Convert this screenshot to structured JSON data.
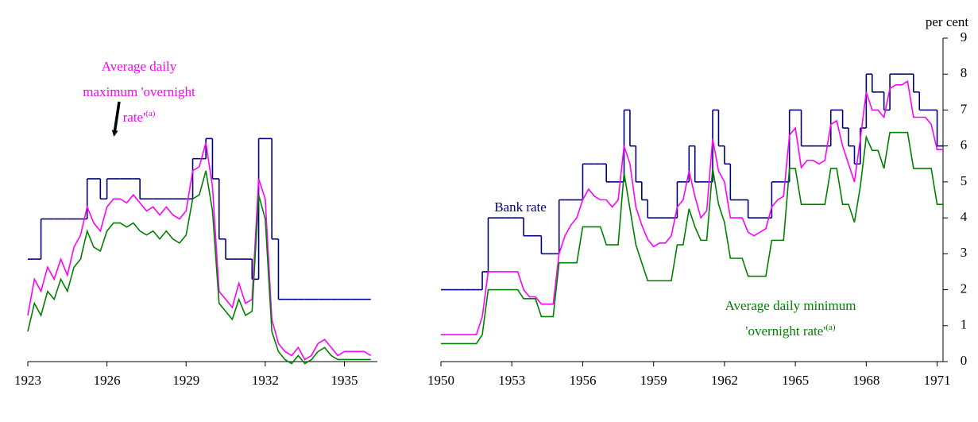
{
  "chart_data": [
    {
      "type": "line",
      "x": [
        1923,
        1923.25,
        1923.5,
        1923.75,
        1924,
        1924.25,
        1924.5,
        1924.75,
        1925,
        1925.25,
        1925.5,
        1925.75,
        1926,
        1926.25,
        1926.5,
        1926.75,
        1927,
        1927.25,
        1927.5,
        1927.75,
        1928,
        1928.25,
        1928.5,
        1928.75,
        1929,
        1929.25,
        1929.5,
        1929.75,
        1930,
        1930.25,
        1930.5,
        1930.75,
        1931,
        1931.25,
        1931.5,
        1931.75,
        1932,
        1932.25,
        1932.5,
        1932.75,
        1933,
        1933.25,
        1933.5,
        1933.75,
        1934,
        1934.25,
        1934.5,
        1934.75,
        1935,
        1935.25,
        1935.5,
        1935.75,
        1936
      ],
      "xlim": [
        1923,
        1936.25
      ],
      "xticks": [
        1923,
        1926,
        1929,
        1932,
        1935
      ],
      "ylim": [
        0.45,
        8.5
      ],
      "series": [
        {
          "color": "#000080",
          "step": true,
          "values": [
            3,
            3,
            4,
            4,
            4,
            4,
            4,
            4,
            4,
            5,
            5,
            4.5,
            5,
            5,
            5,
            5,
            5,
            4.5,
            4.5,
            4.5,
            4.5,
            4.5,
            4.5,
            4.5,
            4.5,
            5.5,
            5.5,
            6,
            5,
            3.5,
            3,
            3,
            3,
            3,
            2.5,
            6,
            6,
            3.5,
            2,
            2,
            2,
            2,
            2,
            2,
            2,
            2,
            2,
            2,
            2,
            2,
            2,
            2,
            2
          ]
        },
        {
          "color": "#ff00ff",
          "step": false,
          "values": [
            1.6,
            2.5,
            2.2,
            2.8,
            2.5,
            3.0,
            2.6,
            3.3,
            3.6,
            4.3,
            3.9,
            3.7,
            4.3,
            4.5,
            4.5,
            4.4,
            4.6,
            4.4,
            4.2,
            4.3,
            4.1,
            4.3,
            4.1,
            4.0,
            4.2,
            5.2,
            5.3,
            5.9,
            4.8,
            2.2,
            2.0,
            1.8,
            2.4,
            1.9,
            2.0,
            5.0,
            4.5,
            1.5,
            0.9,
            0.7,
            0.6,
            0.8,
            0.5,
            0.6,
            0.9,
            1.0,
            0.8,
            0.6,
            0.7,
            0.7,
            0.7,
            0.7,
            0.6
          ]
        },
        {
          "color": "#008000",
          "step": false,
          "values": [
            1.2,
            1.9,
            1.6,
            2.2,
            2.0,
            2.5,
            2.2,
            2.8,
            3.0,
            3.7,
            3.3,
            3.2,
            3.7,
            3.9,
            3.9,
            3.8,
            3.9,
            3.7,
            3.6,
            3.7,
            3.5,
            3.7,
            3.5,
            3.4,
            3.6,
            4.5,
            4.6,
            5.2,
            4.2,
            1.9,
            1.7,
            1.5,
            2.0,
            1.6,
            1.7,
            4.6,
            4.0,
            1.2,
            0.7,
            0.5,
            0.4,
            0.6,
            0.4,
            0.5,
            0.7,
            0.8,
            0.6,
            0.5,
            0.5,
            0.5,
            0.5,
            0.5,
            0.5
          ]
        }
      ],
      "annotations": [
        {
          "text": [
            "Average daily",
            "maximum 'overnight",
            "rate'"
          ],
          "superscript": "(a)",
          "color": "#ff00ff"
        }
      ]
    },
    {
      "type": "line",
      "y_label": "per cent",
      "x": [
        1950,
        1950.25,
        1950.5,
        1950.75,
        1951,
        1951.25,
        1951.5,
        1951.75,
        1952,
        1952.25,
        1952.5,
        1952.75,
        1953,
        1953.25,
        1953.5,
        1953.75,
        1954,
        1954.25,
        1954.5,
        1954.75,
        1955,
        1955.25,
        1955.5,
        1955.75,
        1956,
        1956.25,
        1956.5,
        1956.75,
        1957,
        1957.25,
        1957.5,
        1957.75,
        1958,
        1958.25,
        1958.5,
        1958.75,
        1959,
        1959.25,
        1959.5,
        1959.75,
        1960,
        1960.25,
        1960.5,
        1960.75,
        1961,
        1961.25,
        1961.5,
        1961.75,
        1962,
        1962.25,
        1962.5,
        1962.75,
        1963,
        1963.25,
        1963.5,
        1963.75,
        1964,
        1964.25,
        1964.5,
        1964.75,
        1965,
        1965.25,
        1965.5,
        1965.75,
        1966,
        1966.25,
        1966.5,
        1966.75,
        1967,
        1967.25,
        1967.5,
        1967.75,
        1968,
        1968.25,
        1968.5,
        1968.75,
        1969,
        1969.25,
        1969.5,
        1969.75,
        1970,
        1970.25,
        1970.5,
        1970.75,
        1971,
        1971.25
      ],
      "xlim": [
        1950,
        1971.25
      ],
      "xticks": [
        1950,
        1953,
        1956,
        1959,
        1962,
        1965,
        1968,
        1971
      ],
      "ylim": [
        0,
        9
      ],
      "yticks": [
        0,
        1,
        2,
        3,
        4,
        5,
        6,
        7,
        8,
        9
      ],
      "series": [
        {
          "color": "#000080",
          "step": true,
          "values": [
            2,
            2,
            2,
            2,
            2,
            2,
            2,
            2.5,
            4,
            4,
            4,
            4,
            4,
            4,
            3.5,
            3.5,
            3.5,
            3,
            3,
            3,
            4.5,
            4.5,
            4.5,
            4.5,
            5.5,
            5.5,
            5.5,
            5.5,
            5,
            5,
            5,
            7,
            6,
            5,
            4.5,
            4,
            4,
            4,
            4,
            4,
            5,
            5,
            6,
            5,
            5,
            5,
            7,
            6,
            5.5,
            4.5,
            4.5,
            4.5,
            4,
            4,
            4,
            4,
            5,
            5,
            5,
            7,
            7,
            6,
            6,
            6,
            6,
            6,
            7,
            7,
            6.5,
            6,
            5.5,
            6.5,
            8,
            7.5,
            7.5,
            7,
            8,
            8,
            8,
            8,
            7.5,
            7,
            7,
            7,
            6,
            6
          ]
        },
        {
          "color": "#ff00ff",
          "step": false,
          "values": [
            0.75,
            0.75,
            0.75,
            0.75,
            0.75,
            0.75,
            0.75,
            1.25,
            2.5,
            2.5,
            2.5,
            2.5,
            2.5,
            2.5,
            2.0,
            1.8,
            1.8,
            1.6,
            1.6,
            1.6,
            3.0,
            3.5,
            3.8,
            4.0,
            4.5,
            4.8,
            4.6,
            4.5,
            4.5,
            4.3,
            4.5,
            6.0,
            5.5,
            4.3,
            3.8,
            3.4,
            3.2,
            3.3,
            3.3,
            3.5,
            4.3,
            4.5,
            5.3,
            4.6,
            4.0,
            4.2,
            6.2,
            5.3,
            5.0,
            4.0,
            4.0,
            4.0,
            3.6,
            3.5,
            3.6,
            3.7,
            4.3,
            4.5,
            4.6,
            6.3,
            6.5,
            5.4,
            5.6,
            5.6,
            5.5,
            5.6,
            6.6,
            6.7,
            6.0,
            5.5,
            5.0,
            6.2,
            7.5,
            7.0,
            7.0,
            6.8,
            7.6,
            7.7,
            7.7,
            7.8,
            6.8,
            6.8,
            6.8,
            6.6,
            5.9,
            5.9
          ]
        },
        {
          "color": "#008000",
          "step": false,
          "values": [
            0.5,
            0.5,
            0.5,
            0.5,
            0.5,
            0.5,
            0.5,
            0.75,
            2,
            2,
            2,
            2,
            2,
            2,
            1.75,
            1.75,
            1.75,
            1.25,
            1.25,
            1.25,
            2.75,
            2.75,
            2.75,
            2.75,
            3.75,
            3.75,
            3.75,
            3.75,
            3.25,
            3.25,
            3.25,
            5.25,
            4.25,
            3.25,
            2.75,
            2.25,
            2.25,
            2.25,
            2.25,
            2.25,
            3.25,
            3.25,
            4.25,
            3.75,
            3.375,
            3.375,
            5.375,
            4.375,
            3.875,
            2.875,
            2.875,
            2.875,
            2.375,
            2.375,
            2.375,
            2.375,
            3.375,
            3.375,
            3.375,
            5.375,
            5.375,
            4.375,
            4.375,
            4.375,
            4.375,
            4.375,
            5.375,
            5.375,
            4.375,
            4.375,
            3.875,
            4.875,
            6.25,
            5.875,
            5.875,
            5.375,
            6.375,
            6.375,
            6.375,
            6.375,
            5.375,
            5.375,
            5.375,
            5.375,
            4.375,
            4.375
          ]
        }
      ],
      "annotations": [
        {
          "text": [
            "Bank rate"
          ],
          "color": "#000080"
        },
        {
          "text": [
            "Average daily minimum",
            "'overnight rate'"
          ],
          "superscript": "(a)",
          "color": "#008000"
        }
      ]
    }
  ]
}
